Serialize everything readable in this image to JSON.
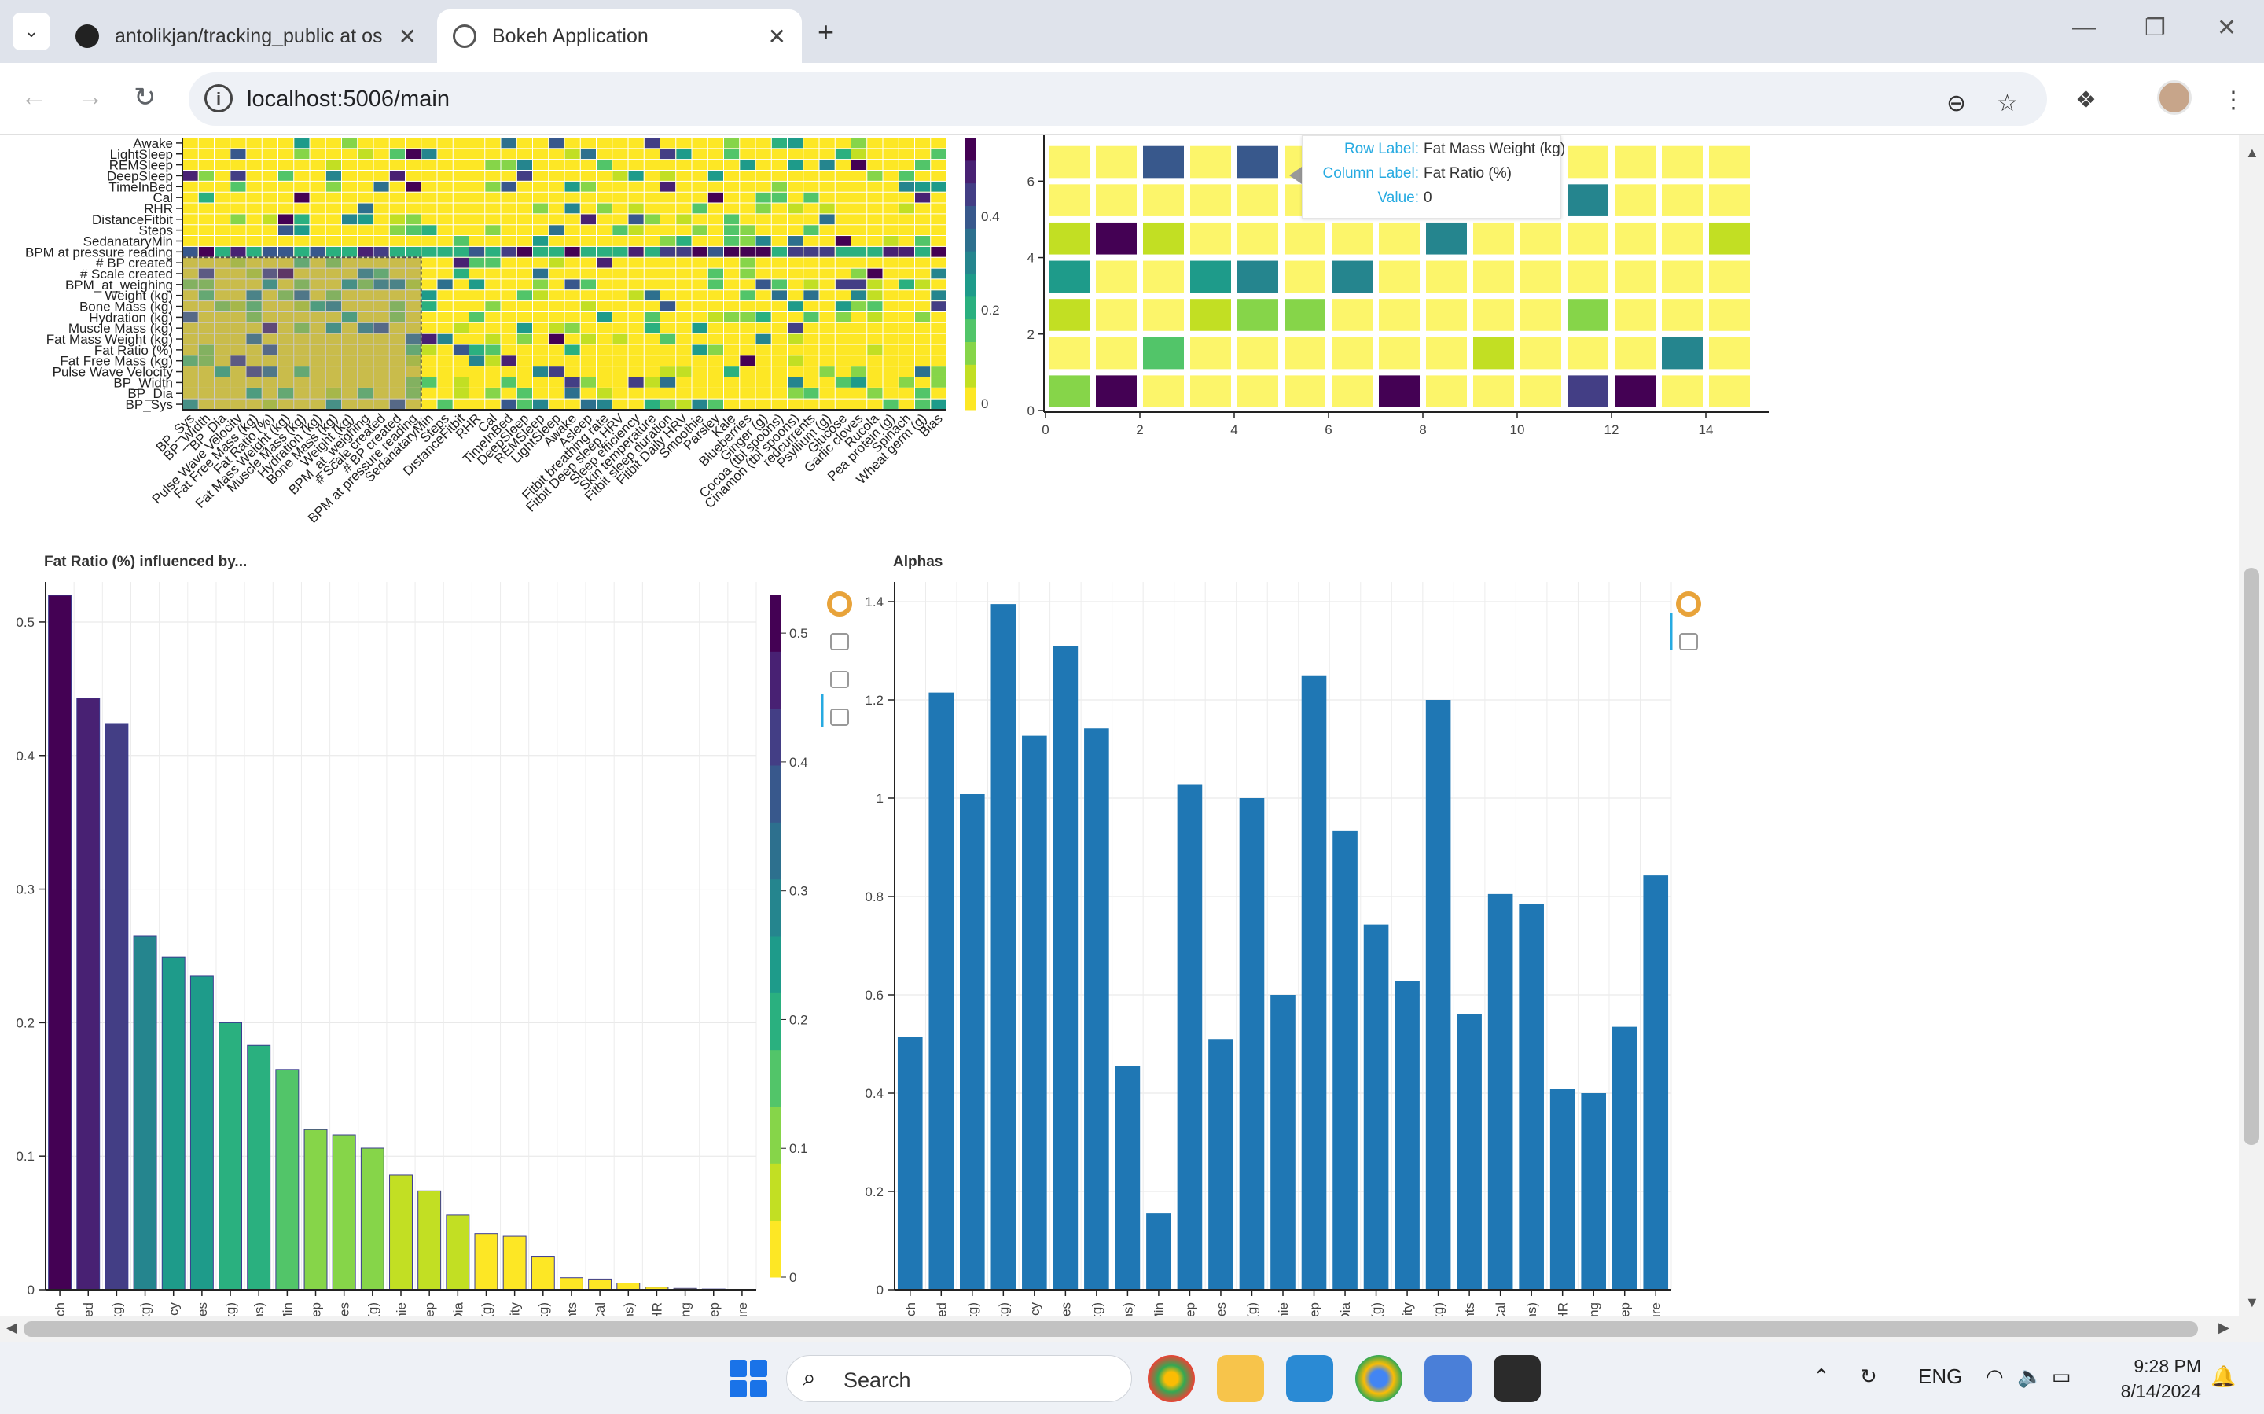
{
  "browser": {
    "tabs": [
      {
        "title": "antolikjan/tracking_public at os",
        "favicon": "github-icon",
        "active": false
      },
      {
        "title": "Bokeh Application",
        "favicon": "globe-icon",
        "active": true
      }
    ],
    "url": "localhost:5006/main"
  },
  "tooltip": {
    "row_label_key": "Row Label:",
    "row_label_value": "Fat Mass Weight (kg)",
    "col_label_key": "Column Label:",
    "col_label_value": "Fat Ratio (%)",
    "value_key": "Value:",
    "value_value": "0"
  },
  "heatmap_rows": [
    "Awake",
    "LightSleep",
    "REMSleep",
    "DeepSleep",
    "TimeInBed",
    "Cal",
    "RHR",
    "DistanceFitbit",
    "Steps",
    "SedanataryMin",
    "BPM at pressure reading",
    "# BP created",
    "# Scale created",
    "BPM_at_weighing",
    "Weight (kg)",
    "Bone Mass (kg)",
    "Hydration (kg)",
    "Muscle Mass (kg)",
    "Fat Mass Weight (kg)",
    "Fat Ratio (%)",
    "Fat Free Mass (kg)",
    "Pulse Wave Velocity",
    "BP_Width",
    "BP_Dia",
    "BP_Sys"
  ],
  "heatmap_cols": [
    "BP_Sys",
    "BP_Width",
    "BP_Dia",
    "Pulse Wave Velocity",
    "Fat Free Mass (kg)",
    "Fat Ratio (%)",
    "Fat Mass Weight (kg)",
    "Muscle Mass (kg)",
    "Hydration (kg)",
    "Bone Mass (kg)",
    "Weight (kg)",
    "BPM_at_weighing",
    "# Scale created",
    "# BP created",
    "BPM at pressure reading",
    "SedanataryMin",
    "Steps",
    "DistanceFitbit",
    "RHR",
    "Cal",
    "TimeInBed",
    "DeepSleep",
    "REMSleep",
    "LightSleep",
    "Awake",
    "Asleep",
    "Fitbit breathing rate",
    "Fitbit Deep sleep HRV",
    "Sleep efficiency",
    "Skin temperature",
    "Fitbit sleep duration",
    "Fitbit Daily HRV",
    "Smoothie",
    "Parsley",
    "Kale",
    "Blueberries",
    "Ginger (g)",
    "Cocoa (tbl spoons)",
    "Cinamon (tbl spoons)",
    "redcurrents",
    "Psyllium (g)",
    "Glucose",
    "Garlic cloves",
    "Rucola",
    "Pea protein (g)",
    "Spinach",
    "Wheat germ (g)",
    "Bias"
  ],
  "heatmap_colorbar_ticks": [
    "0.4",
    "0.2",
    "0"
  ],
  "matrix_chart": {
    "x_ticks": [
      "0",
      "2",
      "4",
      "6",
      "8",
      "10",
      "12",
      "14"
    ],
    "y_ticks": [
      "0",
      "2",
      "4",
      "6"
    ]
  },
  "chart_data": [
    {
      "type": "heatmap",
      "rows": "heatmap_rows",
      "columns": "heatmap_cols",
      "colorbar_range": [
        0,
        0.5
      ],
      "colormap": "viridis_r"
    },
    {
      "type": "heatmap",
      "x_range": [
        0,
        15
      ],
      "y_range": [
        0,
        7
      ],
      "colormap": "viridis_r"
    },
    {
      "type": "bar",
      "title": "Fat Ratio (%) influenced by...",
      "categories": [
        "Spinach",
        "TimeInBed",
        "Muscle Mass (kg)",
        "Hydration (kg)",
        "Sleep efficiency",
        "Raspberries",
        "Fat Free Mass (kg)",
        "Cinamon (tbl spoons)",
        "SedanataryMin",
        "REMSleep",
        "Blueberries",
        "Wheat germ (g)",
        "Smoothie",
        "Asleep",
        "BP_Dia",
        "Ginger (g)",
        "Pulse Wave Velocity",
        "Weight (kg)",
        "redcurrents",
        "Cal",
        "Cocoa (tbl spoons)",
        "RHR",
        "BPM_at_weighing",
        "LightSleep",
        "Skin temperature"
      ],
      "values": [
        0.52,
        0.443,
        0.424,
        0.265,
        0.249,
        0.235,
        0.2,
        0.183,
        0.165,
        0.12,
        0.116,
        0.106,
        0.086,
        0.074,
        0.056,
        0.042,
        0.04,
        0.025,
        0.009,
        0.008,
        0.005,
        0.002,
        0.001,
        0.0005,
        0.0003
      ],
      "y_ticks": [
        "0",
        "0.1",
        "0.2",
        "0.3",
        "0.4",
        "0.5"
      ],
      "ylim": [
        0,
        0.53
      ],
      "colorbar_ticks": [
        "0",
        "0.1",
        "0.2",
        "0.3",
        "0.4",
        "0.5"
      ],
      "colorbar_range": [
        0,
        0.53
      ]
    },
    {
      "type": "bar",
      "title": "Alphas",
      "categories": [
        "Spinach",
        "TimeInBed",
        "Muscle Mass (kg)",
        "Hydration (kg)",
        "Sleep efficiency",
        "Raspberries",
        "Fat Free Mass (kg)",
        "Cinamon (tbl spoons)",
        "SedanataryMin",
        "REMSleep",
        "Blueberries",
        "Wheat germ (g)",
        "Smoothie",
        "Asleep",
        "BP_Dia",
        "Ginger (g)",
        "Pulse Wave Velocity",
        "Weight (kg)",
        "redcurrents",
        "Cal",
        "Cocoa (tbl spoons)",
        "RHR",
        "BPM_at_weighing",
        "LightSleep",
        "Skin temperature"
      ],
      "values": [
        0.515,
        1.215,
        1.008,
        1.395,
        1.127,
        1.31,
        1.142,
        0.455,
        0.155,
        1.028,
        0.51,
        1.0,
        0.6,
        1.25,
        0.933,
        0.743,
        0.628,
        1.2,
        0.56,
        0.805,
        0.785,
        0.408,
        0.4,
        0.535,
        0.843
      ],
      "y_ticks": [
        "0",
        "0.2",
        "0.4",
        "0.6",
        "0.8",
        "1",
        "1.2",
        "1.4"
      ],
      "ylim": [
        0,
        1.44
      ],
      "color": "#1f77b4"
    }
  ],
  "colors": {
    "viridis_r": [
      "#fde725",
      "#c2df23",
      "#86d549",
      "#52c569",
      "#2ab07f",
      "#1e9b8a",
      "#25858e",
      "#2d708e",
      "#38588c",
      "#433e85",
      "#482173",
      "#440154"
    ]
  },
  "taskbar": {
    "search_label": "Search",
    "language": "ENG",
    "time": "9:28 PM",
    "date": "8/14/2024"
  }
}
